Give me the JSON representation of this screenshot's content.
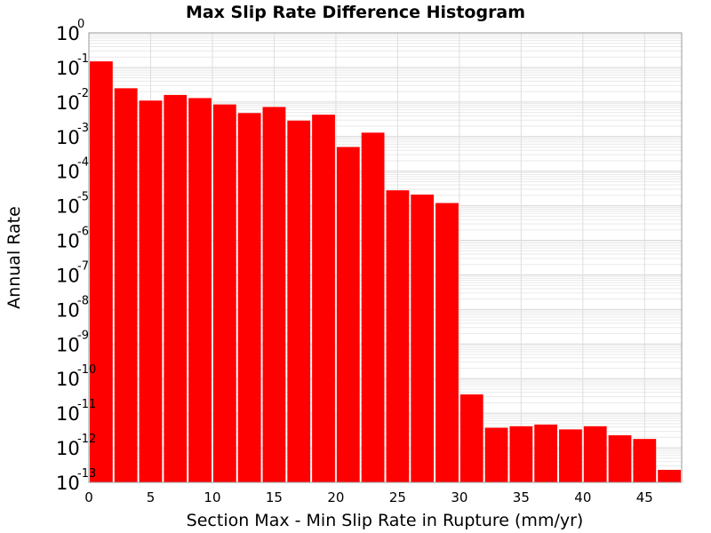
{
  "chart_data": {
    "type": "bar",
    "title": "Max Slip Rate Difference Histogram",
    "xlabel": "Section Max - Min Slip Rate in Rupture (mm/yr)",
    "ylabel": "Annual Rate",
    "yscale": "log",
    "xlim": [
      0,
      48
    ],
    "ylim": [
      1e-13,
      1
    ],
    "bin_width": 2,
    "x_ticks": [
      0,
      5,
      10,
      15,
      20,
      25,
      30,
      35,
      40,
      45
    ],
    "y_ticks": [
      {
        "base": "10",
        "exp": "0",
        "value": 1
      },
      {
        "base": "10",
        "exp": "-1",
        "value": 0.1
      },
      {
        "base": "10",
        "exp": "-2",
        "value": 0.01
      },
      {
        "base": "10",
        "exp": "-3",
        "value": 0.001
      },
      {
        "base": "10",
        "exp": "-4",
        "value": 0.0001
      },
      {
        "base": "10",
        "exp": "-5",
        "value": 1e-05
      },
      {
        "base": "10",
        "exp": "-6",
        "value": 1e-06
      },
      {
        "base": "10",
        "exp": "-7",
        "value": 1e-07
      },
      {
        "base": "10",
        "exp": "-8",
        "value": 1e-08
      },
      {
        "base": "10",
        "exp": "-9",
        "value": 1e-09
      },
      {
        "base": "10",
        "exp": "-10",
        "value": 1e-10
      },
      {
        "base": "10",
        "exp": "-11",
        "value": 1e-11
      },
      {
        "base": "10",
        "exp": "-12",
        "value": 1e-12
      },
      {
        "base": "10",
        "exp": "-13",
        "value": 1e-13
      }
    ],
    "bins": [
      {
        "x": 0,
        "value": 0.15
      },
      {
        "x": 2,
        "value": 0.025
      },
      {
        "x": 4,
        "value": 0.011
      },
      {
        "x": 6,
        "value": 0.016
      },
      {
        "x": 8,
        "value": 0.013
      },
      {
        "x": 10,
        "value": 0.0085
      },
      {
        "x": 12,
        "value": 0.0048
      },
      {
        "x": 14,
        "value": 0.0072
      },
      {
        "x": 16,
        "value": 0.0029
      },
      {
        "x": 18,
        "value": 0.0043
      },
      {
        "x": 20,
        "value": 0.0005
      },
      {
        "x": 22,
        "value": 0.0013
      },
      {
        "x": 24,
        "value": 2.8e-05
      },
      {
        "x": 26,
        "value": 2.1e-05
      },
      {
        "x": 28,
        "value": 1.2e-05
      },
      {
        "x": 30,
        "value": 3.5e-11
      },
      {
        "x": 32,
        "value": 3.8e-12
      },
      {
        "x": 34,
        "value": 4.2e-12
      },
      {
        "x": 36,
        "value": 4.7e-12
      },
      {
        "x": 38,
        "value": 3.4e-12
      },
      {
        "x": 40,
        "value": 4.2e-12
      },
      {
        "x": 42,
        "value": 2.3e-12
      },
      {
        "x": 44,
        "value": 1.8e-12
      },
      {
        "x": 46,
        "value": 2.3e-13
      }
    ],
    "bar_color": "#ff0000",
    "grid": true,
    "legend": "none"
  }
}
